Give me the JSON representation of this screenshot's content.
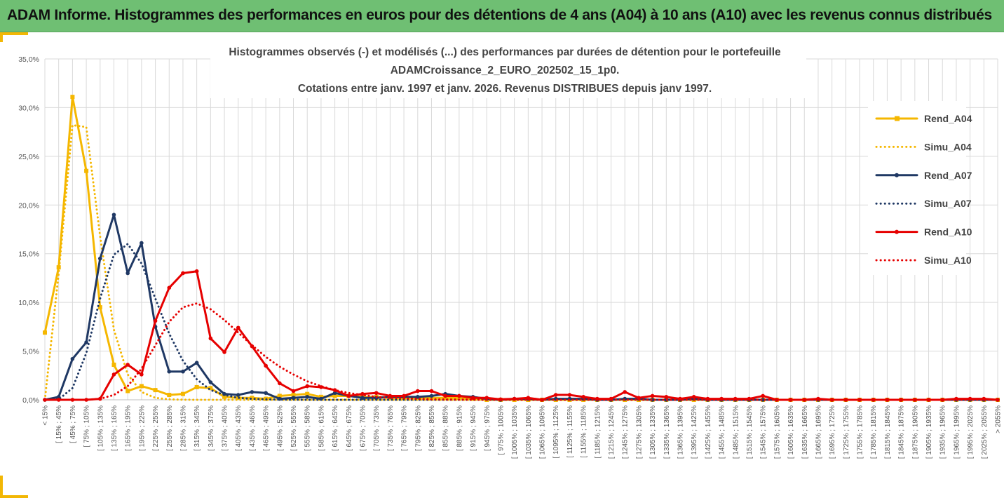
{
  "banner": {
    "title": "ADAM Informe. Histogrammes des performances en euros pour des détentions de 4 ans (A04) à 10 ans (A10) avec les revenus connus distribués"
  },
  "colors": {
    "banner_bg": "#6fbf73",
    "accent": "#f2b705",
    "A04": "#f5b700",
    "A07": "#1f3864",
    "A10": "#e60000",
    "grid": "#d9d9d9"
  },
  "chart_data": {
    "type": "line",
    "title_lines": [
      "Histogrammes observés (-) et modélisés (...) des performances par durées de détention pour le portefeuille",
      "ADAMCroissance_2_EURO_202502_15_1p0.",
      "Cotations entre janv. 1997 et janv. 2026. Revenus DISTRIBUES depuis janv 1997."
    ],
    "y_axis": {
      "min": 0,
      "max": 0.35,
      "step": 0.05,
      "tick_labels": [
        "0,0%",
        "5,0%",
        "10,0%",
        "15,0%",
        "20,0%",
        "25,0%",
        "30,0%",
        "35,0%"
      ]
    },
    "grid": "vertical and horizontal",
    "legend_position": "right",
    "categories": [
      "< 15%",
      "[ 15% ; 45%",
      "[ 45% ; 75%",
      "[ 75% ; 105%",
      "[ 105% ; 135%",
      "[ 135% ; 165%",
      "[ 165% ; 195%",
      "[ 195% ; 225%",
      "[ 225% ; 255%",
      "[ 255% ; 285%",
      "[ 285% ; 315%",
      "[ 315% ; 345%",
      "[ 345% ; 375%",
      "[ 375% ; 405%",
      "[ 405% ; 435%",
      "[ 435% ; 465%",
      "[ 465% ; 495%",
      "[ 495% ; 525%",
      "[ 525% ; 555%",
      "[ 555% ; 585%",
      "[ 585% ; 615%",
      "[ 615% ; 645%",
      "[ 645% ; 675%",
      "[ 675% ; 705%",
      "[ 705% ; 735%",
      "[ 735% ; 765%",
      "[ 765% ; 795%",
      "[ 795% ; 825%",
      "[ 825% ; 855%",
      "[ 855% ; 885%",
      "[ 885% ; 915%",
      "[ 915% ; 945%",
      "[ 945% ; 975%",
      "[ 975% ; 1005%",
      "[ 1005% ; 1035%",
      "[ 1035% ; 1065%",
      "[ 1065% ; 1095%",
      "[ 1095% ; 1125%",
      "[ 1125% ; 1155%",
      "[ 1155% ; 1185%",
      "[ 1185% ; 1215%",
      "[ 1215% ; 1245%",
      "[ 1245% ; 1275%",
      "[ 1275% ; 1305%",
      "[ 1305% ; 1335%",
      "[ 1335% ; 1365%",
      "[ 1365% ; 1395%",
      "[ 1395% ; 1425%",
      "[ 1425% ; 1455%",
      "[ 1455% ; 1485%",
      "[ 1485% ; 1515%",
      "[ 1515% ; 1545%",
      "[ 1545% ; 1575%",
      "[ 1575% ; 1605%",
      "[ 1605% ; 1635%",
      "[ 1635% ; 1665%",
      "[ 1665% ; 1695%",
      "[ 1695% ; 1725%",
      "[ 1725% ; 1755%",
      "[ 1755% ; 1785%",
      "[ 1785% ; 1815%",
      "[ 1815% ; 1845%",
      "[ 1845% ; 1875%",
      "[ 1875% ; 1905%",
      "[ 1905% ; 1935%",
      "[ 1935% ; 1965%",
      "[ 1965% ; 1995%",
      "[ 1995% ; 2025%",
      "[ 2025% ; 2055%",
      "> 2055%"
    ],
    "series": [
      {
        "name": "Rend_A04",
        "color": "#f5b700",
        "style": "solid",
        "markers": "square",
        "values": [
          0.069,
          0.136,
          0.311,
          0.235,
          0.095,
          0.036,
          0.009,
          0.014,
          0.01,
          0.005,
          0.006,
          0.013,
          0.012,
          0.003,
          0.002,
          0.002,
          0.001,
          0.004,
          0.005,
          0.006,
          0.003,
          0.004,
          0.004,
          0.003,
          0.003,
          0.002,
          0.002,
          0.002,
          0.002,
          0.002,
          0.002,
          0.001,
          0,
          0,
          0,
          0,
          0,
          0,
          0,
          0,
          0,
          0,
          0,
          0,
          0,
          0,
          0,
          0,
          0,
          0,
          0,
          0,
          0,
          0,
          0,
          0,
          0,
          0,
          0,
          0,
          0,
          0,
          0,
          0,
          0,
          0,
          0,
          0,
          0,
          0
        ]
      },
      {
        "name": "Simu_A04",
        "color": "#f5b700",
        "style": "dotted",
        "markers": "none",
        "values": [
          0.0,
          0.13,
          0.282,
          0.28,
          0.168,
          0.072,
          0.026,
          0.008,
          0.002,
          0.0005,
          0.0001,
          0,
          0,
          0,
          0,
          0,
          0,
          0,
          0,
          0,
          0,
          0,
          0,
          0,
          0,
          0,
          0,
          0,
          0,
          0,
          0,
          0,
          0,
          0,
          0,
          0,
          0,
          0,
          0,
          0,
          0,
          0,
          0,
          0,
          0,
          0,
          0,
          0,
          0,
          0,
          0,
          0,
          0,
          0,
          0,
          0,
          0,
          0,
          0,
          0,
          0,
          0,
          0,
          0,
          0,
          0,
          0,
          0,
          0,
          0
        ]
      },
      {
        "name": "Rend_A07",
        "color": "#1f3864",
        "style": "solid",
        "markers": "circle",
        "values": [
          0.0,
          0.003,
          0.042,
          0.059,
          0.145,
          0.19,
          0.13,
          0.161,
          0.075,
          0.029,
          0.029,
          0.038,
          0.018,
          0.006,
          0.005,
          0.008,
          0.007,
          0.001,
          0.002,
          0.003,
          0.001,
          0.007,
          0.004,
          0.002,
          0.002,
          0.003,
          0.003,
          0.003,
          0.004,
          0.006,
          0.004,
          0.003,
          0.001,
          0.0,
          0.001,
          0.001,
          0,
          0.001,
          0.001,
          0.001,
          0,
          0,
          0.001,
          0.001,
          0,
          0,
          0,
          0.001,
          0,
          0,
          0,
          0,
          0,
          0,
          0,
          0,
          0,
          0,
          0,
          0,
          0,
          0,
          0,
          0,
          0,
          0,
          0,
          0,
          0,
          0
        ]
      },
      {
        "name": "Simu_A07",
        "color": "#1f3864",
        "style": "dotted",
        "markers": "none",
        "values": [
          0.0,
          0.0005,
          0.012,
          0.048,
          0.104,
          0.149,
          0.16,
          0.14,
          0.104,
          0.068,
          0.04,
          0.021,
          0.01,
          0.005,
          0.002,
          0.001,
          0.0005,
          0.0002,
          0.0001,
          0,
          0,
          0,
          0,
          0,
          0,
          0,
          0,
          0,
          0,
          0,
          0,
          0,
          0,
          0,
          0,
          0,
          0,
          0,
          0,
          0,
          0,
          0,
          0,
          0,
          0,
          0,
          0,
          0,
          0,
          0,
          0,
          0,
          0,
          0,
          0,
          0,
          0,
          0,
          0,
          0,
          0,
          0,
          0,
          0,
          0,
          0,
          0,
          0,
          0,
          0
        ]
      },
      {
        "name": "Rend_A10",
        "color": "#e60000",
        "style": "solid",
        "markers": "circle",
        "values": [
          0.0,
          0.0,
          0.0,
          0.0,
          0.001,
          0.026,
          0.036,
          0.026,
          0.081,
          0.115,
          0.13,
          0.132,
          0.063,
          0.049,
          0.074,
          0.055,
          0.035,
          0.017,
          0.009,
          0.014,
          0.013,
          0.01,
          0.004,
          0.006,
          0.007,
          0.004,
          0.004,
          0.009,
          0.009,
          0.004,
          0.004,
          0.002,
          0.002,
          0.0005,
          0.001,
          0.002,
          0.0,
          0.005,
          0.005,
          0.003,
          0.001,
          0.001,
          0.008,
          0.002,
          0.004,
          0.003,
          0.001,
          0.003,
          0.001,
          0.001,
          0.001,
          0.001,
          0.004,
          0.0,
          0.0,
          0.0,
          0.001,
          0.0,
          0.0,
          0.0,
          0.0,
          0.0,
          0.0,
          0.0,
          0.0,
          0.0,
          0.001,
          0.001,
          0.001,
          0.0
        ]
      },
      {
        "name": "Simu_A10",
        "color": "#e60000",
        "style": "dotted",
        "markers": "none",
        "values": [
          0.0,
          0.0,
          0.0,
          0.0,
          0.001,
          0.005,
          0.014,
          0.032,
          0.056,
          0.08,
          0.095,
          0.099,
          0.093,
          0.082,
          0.069,
          0.056,
          0.044,
          0.034,
          0.026,
          0.019,
          0.014,
          0.01,
          0.007,
          0.005,
          0.003,
          0.002,
          0.0015,
          0.001,
          0.0005,
          0.0003,
          0.0002,
          0.0001,
          0,
          0,
          0,
          0,
          0,
          0,
          0,
          0,
          0,
          0,
          0,
          0,
          0,
          0,
          0,
          0,
          0,
          0,
          0,
          0,
          0,
          0,
          0,
          0,
          0,
          0,
          0,
          0,
          0,
          0,
          0,
          0,
          0,
          0,
          0,
          0,
          0,
          0
        ]
      }
    ]
  }
}
